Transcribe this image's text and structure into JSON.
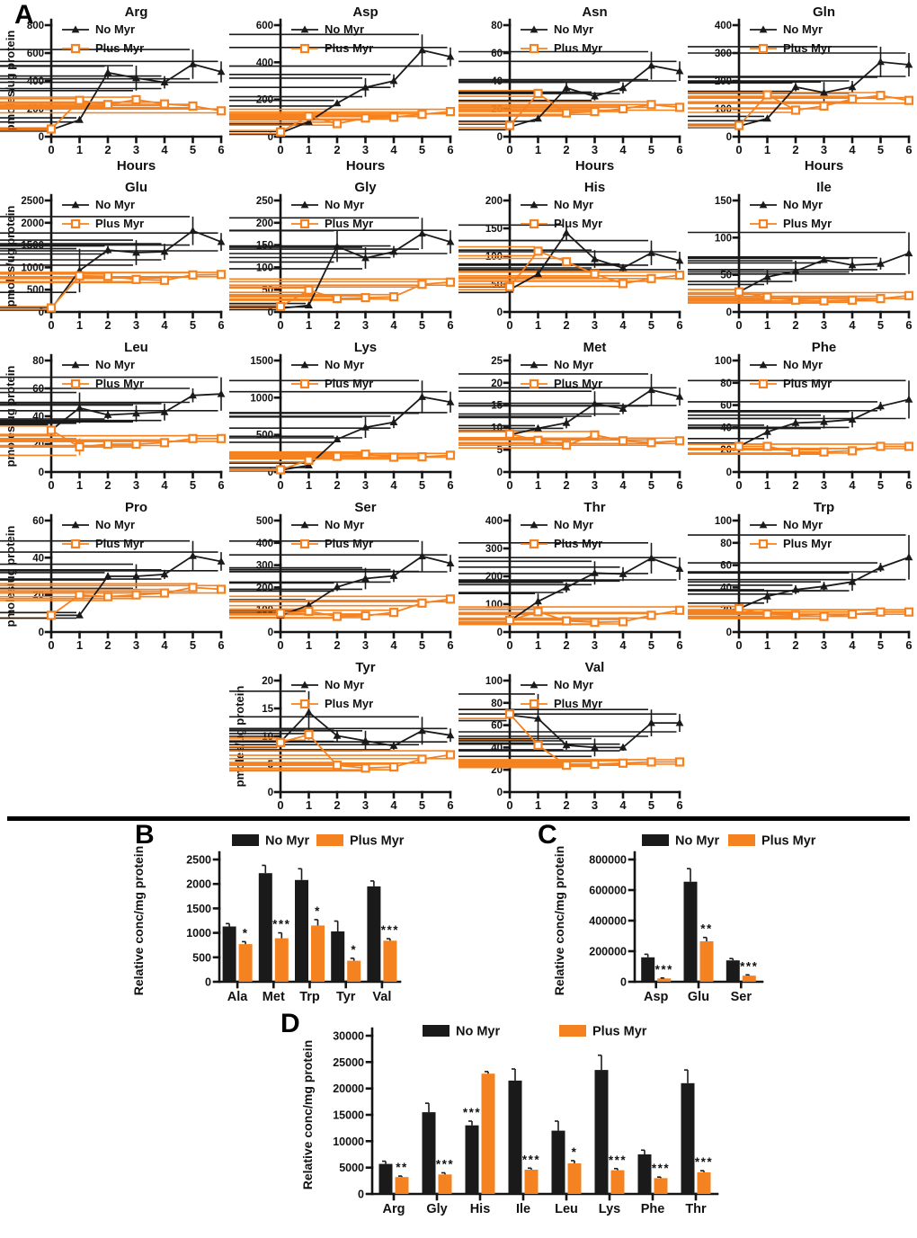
{
  "figure": {
    "panel_a_label": "A",
    "panel_b_label": "B",
    "panel_c_label": "C",
    "panel_d_label": "D"
  },
  "colors": {
    "no_myr": "#1a1a1a",
    "plus_myr": "#F58220"
  },
  "chart_data": {
    "panel_a": {
      "type": "line",
      "xlabel": "Hours",
      "ylabel": "pmoles/ug protein",
      "x": [
        0,
        1,
        2,
        3,
        4,
        5,
        6
      ],
      "series_names": [
        "No Myr",
        "Plus Myr"
      ],
      "charts": [
        {
          "title": "Arg",
          "ymax": 800,
          "yticks": [
            0,
            200,
            400,
            600,
            800
          ],
          "no_myr": [
            50,
            120,
            460,
            420,
            390,
            520,
            465
          ],
          "no_err": [
            10,
            15,
            45,
            90,
            45,
            105,
            75
          ],
          "plus_myr": [
            55,
            260,
            230,
            265,
            235,
            220,
            185
          ],
          "plus_err": [
            8,
            12,
            12,
            18,
            12,
            12,
            14
          ]
        },
        {
          "title": "Asp",
          "ymax": 600,
          "yticks": [
            0,
            200,
            400,
            600
          ],
          "no_myr": [
            20,
            80,
            180,
            265,
            300,
            465,
            430
          ],
          "no_err": [
            8,
            12,
            15,
            50,
            35,
            85,
            50
          ],
          "plus_myr": [
            25,
            110,
            70,
            100,
            105,
            120,
            135
          ],
          "plus_err": [
            8,
            10,
            8,
            10,
            10,
            12,
            12
          ]
        },
        {
          "title": "Asn",
          "ymax": 80,
          "yticks": [
            0,
            20,
            40,
            60,
            80
          ],
          "no_myr": [
            7,
            13,
            35,
            29,
            35,
            51,
            47
          ],
          "no_err": [
            2,
            2,
            4,
            3,
            4,
            10,
            7
          ],
          "plus_myr": [
            8,
            31,
            17,
            18,
            20,
            23,
            21
          ],
          "plus_err": [
            1.5,
            2,
            2,
            2,
            2,
            2,
            2
          ]
        },
        {
          "title": "Gln",
          "ymax": 400,
          "yticks": [
            0,
            100,
            200,
            300,
            400
          ],
          "no_myr": [
            38,
            65,
            178,
            158,
            178,
            268,
            258
          ],
          "no_err": [
            5,
            8,
            15,
            38,
            22,
            55,
            42
          ],
          "plus_myr": [
            40,
            150,
            95,
            110,
            135,
            148,
            130
          ],
          "plus_err": [
            5,
            8,
            8,
            10,
            10,
            10,
            10
          ]
        },
        {
          "title": "Glu",
          "ymax": 2500,
          "yticks": [
            0,
            500,
            1000,
            1500,
            2000,
            2500
          ],
          "no_myr": [
            70,
            930,
            1390,
            1330,
            1350,
            1820,
            1570
          ],
          "no_err": [
            30,
            490,
            90,
            280,
            180,
            320,
            200
          ],
          "plus_myr": [
            90,
            810,
            800,
            730,
            710,
            830,
            840
          ],
          "plus_err": [
            30,
            60,
            50,
            50,
            50,
            50,
            50
          ]
        },
        {
          "title": "Gly",
          "ymax": 250,
          "yticks": [
            0,
            50,
            100,
            150,
            200,
            250
          ],
          "no_myr": [
            8,
            15,
            147,
            121,
            135,
            176,
            157
          ],
          "no_err": [
            3,
            4,
            35,
            24,
            13,
            35,
            26
          ],
          "plus_myr": [
            12,
            49,
            30,
            32,
            34,
            62,
            67
          ],
          "plus_err": [
            3,
            5,
            4,
            4,
            5,
            6,
            7
          ]
        },
        {
          "title": "His",
          "ymax": 200,
          "yticks": [
            0,
            50,
            100,
            150,
            200
          ],
          "no_myr": [
            40,
            68,
            142,
            95,
            79,
            106,
            92
          ],
          "no_err": [
            5,
            8,
            14,
            16,
            7,
            22,
            16
          ],
          "plus_myr": [
            45,
            109,
            90,
            68,
            51,
            60,
            66
          ],
          "plus_err": [
            5,
            8,
            6,
            6,
            5,
            5,
            6
          ]
        },
        {
          "title": "Ile",
          "ymax": 150,
          "yticks": [
            0,
            50,
            100,
            150
          ],
          "no_myr": [
            27,
            47,
            55,
            70,
            63,
            65,
            79
          ],
          "no_err": [
            3,
            10,
            14,
            4,
            9,
            8,
            28
          ],
          "plus_myr": [
            27,
            20,
            16,
            15,
            16,
            18,
            22
          ],
          "plus_err": [
            3,
            4,
            3,
            3,
            3,
            3,
            4
          ]
        },
        {
          "title": "Leu",
          "ymax": 80,
          "yticks": [
            0,
            20,
            40,
            60,
            80
          ],
          "no_myr": [
            30,
            46,
            41,
            42,
            43,
            55,
            56
          ],
          "no_err": [
            4,
            11,
            3,
            6,
            6,
            5,
            12
          ],
          "plus_myr": [
            30,
            18,
            20,
            20,
            21,
            24,
            24
          ],
          "plus_err": [
            3,
            6,
            2,
            2,
            2,
            2,
            2
          ]
        },
        {
          "title": "Lys",
          "ymax": 1500,
          "yticks": [
            0,
            500,
            1000,
            1500
          ],
          "no_myr": [
            25,
            90,
            440,
            600,
            670,
            1010,
            940
          ],
          "no_err": [
            10,
            30,
            40,
            140,
            80,
            220,
            140
          ],
          "plus_myr": [
            30,
            160,
            210,
            240,
            200,
            205,
            225
          ],
          "plus_err": [
            10,
            25,
            25,
            30,
            25,
            25,
            25
          ]
        },
        {
          "title": "Met",
          "ymax": 25,
          "yticks": [
            0,
            5,
            10,
            15,
            20,
            25
          ],
          "no_myr": [
            8.3,
            9.8,
            11,
            15.3,
            14.2,
            18.4,
            16.9
          ],
          "no_err": [
            0.8,
            0.6,
            1.2,
            2.8,
            1.2,
            3.6,
            2
          ],
          "plus_myr": [
            8.5,
            7.1,
            6,
            8.3,
            7,
            6.6,
            7
          ],
          "plus_err": [
            0.8,
            0.6,
            0.6,
            0.8,
            0.6,
            0.6,
            0.6
          ]
        },
        {
          "title": "Phe",
          "ymax": 100,
          "yticks": [
            0,
            20,
            40,
            60,
            80,
            100
          ],
          "no_myr": [
            23,
            36,
            44,
            45,
            47,
            59,
            65
          ],
          "no_err": [
            3,
            6,
            4,
            6,
            7,
            4,
            17
          ],
          "plus_myr": [
            23,
            23,
            18,
            18,
            19,
            23,
            23
          ],
          "plus_err": [
            2,
            2,
            2,
            2,
            2,
            2,
            2
          ]
        },
        {
          "title": "Pro",
          "ymax": 60,
          "yticks": [
            0,
            20,
            40,
            60
          ],
          "no_myr": [
            9,
            9,
            30,
            30,
            31,
            41,
            38
          ],
          "no_err": [
            1.5,
            1.5,
            2,
            6.5,
            2.5,
            8,
            5
          ],
          "plus_myr": [
            9,
            20,
            19,
            20,
            21,
            24,
            23
          ],
          "plus_err": [
            1.5,
            2,
            2,
            2,
            2,
            2,
            2
          ]
        },
        {
          "title": "Ser",
          "ymax": 500,
          "yticks": [
            0,
            100,
            200,
            300,
            400,
            500
          ],
          "no_myr": [
            75,
            120,
            202,
            240,
            252,
            340,
            308
          ],
          "no_err": [
            10,
            25,
            18,
            48,
            28,
            68,
            38
          ],
          "plus_myr": [
            85,
            93,
            70,
            73,
            88,
            130,
            148
          ],
          "plus_err": [
            8,
            10,
            8,
            8,
            10,
            12,
            12
          ]
        },
        {
          "title": "Thr",
          "ymax": 400,
          "yticks": [
            0,
            100,
            200,
            300,
            400
          ],
          "no_myr": [
            40,
            110,
            160,
            212,
            208,
            265,
            227
          ],
          "no_err": [
            8,
            28,
            18,
            42,
            25,
            55,
            40
          ],
          "plus_myr": [
            42,
            73,
            40,
            35,
            37,
            60,
            78
          ],
          "plus_err": [
            6,
            10,
            8,
            8,
            8,
            10,
            12
          ]
        },
        {
          "title": "Trp",
          "ymax": 100,
          "yticks": [
            0,
            20,
            40,
            60,
            80,
            100
          ],
          "no_myr": [
            21,
            32,
            38,
            41,
            45,
            58,
            67
          ],
          "no_err": [
            2,
            6,
            4,
            4,
            8,
            4,
            20
          ],
          "plus_myr": [
            21,
            16,
            15,
            14,
            16,
            18,
            18
          ],
          "plus_err": [
            2,
            2,
            2,
            2,
            2,
            2,
            2
          ]
        },
        {
          "title": "Tyr",
          "ymax": 20,
          "yticks": [
            0,
            5,
            10,
            15,
            20
          ],
          "no_myr": [
            9,
            14.3,
            10.1,
            9.2,
            8.3,
            11,
            10.2
          ],
          "no_err": [
            1,
            3.8,
            1,
            1.8,
            0.7,
            2.5,
            1.2
          ],
          "plus_myr": [
            8.9,
            10.3,
            4.8,
            4.3,
            4.5,
            5.9,
            6.7
          ],
          "plus_err": [
            0.8,
            1,
            0.5,
            0.5,
            0.5,
            0.7,
            0.7
          ]
        },
        {
          "title": "Val",
          "ymax": 100,
          "yticks": [
            0,
            20,
            40,
            60,
            80,
            100
          ],
          "no_myr": [
            69,
            66,
            42,
            40,
            40,
            62,
            62
          ],
          "no_err": [
            5,
            22,
            4,
            8,
            3,
            12,
            8
          ],
          "plus_myr": [
            70,
            42,
            24,
            25,
            26,
            27,
            27
          ],
          "plus_err": [
            4,
            5,
            2,
            2,
            2,
            2,
            2
          ]
        }
      ]
    },
    "panel_b": {
      "type": "bar",
      "ylabel": "Relative conc/mg protein",
      "legend": [
        "No Myr",
        "Plus Myr"
      ],
      "categories": [
        "Ala",
        "Met",
        "Trp",
        "Tyr",
        "Val"
      ],
      "no_myr": [
        1130,
        2220,
        2080,
        1030,
        1950
      ],
      "no_err": [
        60,
        160,
        230,
        210,
        110
      ],
      "plus_myr": [
        770,
        890,
        1150,
        430,
        840
      ],
      "plus_err": [
        50,
        110,
        120,
        50,
        40
      ],
      "sig": [
        "*",
        "***",
        "*",
        "*",
        "***"
      ],
      "ymax": 2500,
      "yticks": [
        0,
        500,
        1000,
        1500,
        2000,
        2500
      ]
    },
    "panel_c": {
      "type": "bar",
      "ylabel": "Relative conc/mg protein",
      "legend": [
        "No Myr",
        "Plus Myr"
      ],
      "categories": [
        "Asp",
        "Glu",
        "Ser"
      ],
      "no_myr": [
        160000,
        655000,
        140000
      ],
      "no_err": [
        20000,
        85000,
        12000
      ],
      "plus_myr": [
        22000,
        265000,
        40000
      ],
      "plus_err": [
        3000,
        25000,
        5000
      ],
      "sig": [
        "***",
        "**",
        "***"
      ],
      "ymax": 800000,
      "yticks": [
        0,
        200000,
        400000,
        600000,
        800000
      ]
    },
    "panel_d": {
      "type": "bar",
      "ylabel": "Relative conc/mg protein",
      "legend": [
        "No Myr",
        "Plus Myr"
      ],
      "categories": [
        "Arg",
        "Gly",
        "His",
        "Ile",
        "Leu",
        "Lys",
        "Phe",
        "Thr"
      ],
      "no_myr": [
        5700,
        15500,
        13000,
        21500,
        12000,
        23500,
        7500,
        21000
      ],
      "no_err": [
        500,
        1700,
        800,
        2200,
        1800,
        2800,
        800,
        2500
      ],
      "plus_myr": [
        3200,
        3700,
        22800,
        4600,
        5800,
        4500,
        3000,
        4100
      ],
      "plus_err": [
        200,
        300,
        400,
        300,
        500,
        300,
        200,
        300
      ],
      "sig": [
        "**",
        "***",
        "***",
        "***",
        "*",
        "***",
        "***",
        "***"
      ],
      "ymax": 30000,
      "yticks": [
        0,
        5000,
        10000,
        15000,
        20000,
        25000,
        30000
      ]
    }
  }
}
